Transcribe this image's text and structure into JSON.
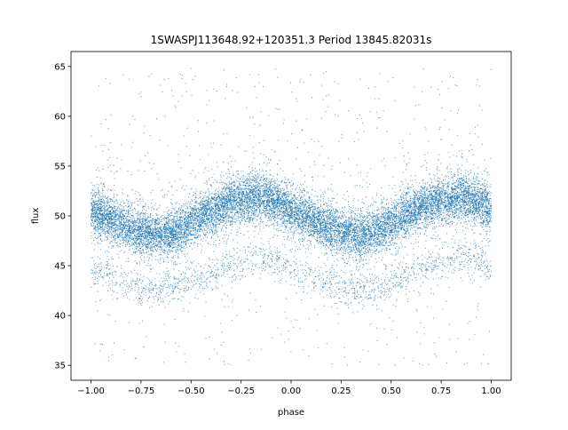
{
  "chart_data": {
    "type": "scatter",
    "title": "1SWASPJ113648.92+120351.3 Period 13845.82031s",
    "xlabel": "phase",
    "ylabel": "flux",
    "xlim": [
      -1.1,
      1.1
    ],
    "ylim": [
      33.5,
      66.5
    ],
    "x_ticks": [
      -1.0,
      -0.75,
      -0.5,
      -0.25,
      0.0,
      0.25,
      0.5,
      0.75,
      1.0
    ],
    "x_tick_labels": [
      "−1.00",
      "−0.75",
      "−0.50",
      "−0.25",
      "0.00",
      "0.25",
      "0.50",
      "0.75",
      "1.00"
    ],
    "y_ticks": [
      35,
      40,
      45,
      50,
      55,
      60,
      65
    ],
    "y_tick_labels": [
      "35",
      "40",
      "45",
      "50",
      "55",
      "60",
      "65"
    ],
    "grid": false,
    "legend": "none",
    "series": [
      {
        "color": "#1f77b4",
        "x_range": [
          -1.0,
          1.0
        ],
        "main_band": {
          "x": [
            -1.0,
            -0.9,
            -0.8,
            -0.7,
            -0.65,
            -0.6,
            -0.5,
            -0.4,
            -0.3,
            -0.2,
            -0.15,
            -0.1,
            0.0,
            0.1,
            0.2,
            0.3,
            0.35,
            0.4,
            0.5,
            0.6,
            0.7,
            0.8,
            0.85,
            0.9,
            1.0
          ],
          "y_center": [
            50.5,
            49.6,
            48.7,
            48.2,
            48.1,
            48.3,
            49.3,
            50.4,
            51.3,
            51.7,
            51.8,
            51.6,
            50.6,
            49.6,
            48.7,
            48.2,
            48.1,
            48.3,
            49.3,
            50.4,
            51.3,
            51.7,
            51.8,
            51.6,
            50.8
          ],
          "y_halfwidth": 2.0
        },
        "secondary_band": {
          "x": [
            -1.0,
            -0.85,
            -0.75,
            -0.65,
            -0.5,
            -0.35,
            -0.2,
            -0.1,
            0.0,
            0.15,
            0.3,
            0.4,
            0.5,
            0.65,
            0.8,
            0.9,
            1.0
          ],
          "y_center": [
            44.5,
            43.3,
            42.7,
            42.6,
            43.3,
            44.6,
            45.7,
            45.6,
            44.8,
            43.3,
            42.6,
            42.6,
            43.3,
            44.6,
            45.7,
            45.6,
            44.8
          ],
          "y_halfwidth": 1.2
        },
        "outlier_range": [
          35,
          65
        ]
      }
    ]
  }
}
